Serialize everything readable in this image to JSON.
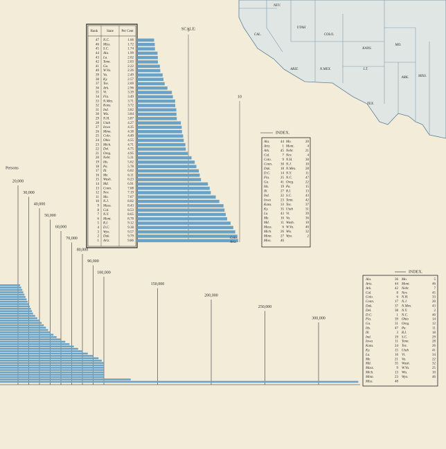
{
  "rank_table": {
    "headers": [
      "Rank",
      "State",
      "Per Cent"
    ],
    "rows": [
      [
        47,
        "N.C.",
        1.66
      ],
      [
        46,
        "Miss.",
        1.72
      ],
      [
        45,
        "S.C.",
        1.74
      ],
      [
        44,
        "Ala.",
        1.99
      ],
      [
        43,
        "La.",
        2.02
      ],
      [
        42,
        "Tenn.",
        2.03
      ],
      [
        41,
        "Ga.",
        2.22
      ],
      [
        40,
        "W.Va.",
        2.26
      ],
      [
        39,
        "Va.",
        2.49
      ],
      [
        38,
        "Ky.",
        2.57
      ],
      [
        37,
        "Tex.",
        2.69
      ],
      [
        36,
        "Ark.",
        2.96
      ],
      [
        35,
        "Vt.",
        3.39
      ],
      [
        34,
        "Fla.",
        3.49
      ],
      [
        33,
        "N.Mex.",
        3.71
      ],
      [
        32,
        "Kans.",
        3.72
      ],
      [
        31,
        "Ind.",
        3.82
      ],
      [
        30,
        "Wis.",
        3.84
      ],
      [
        29,
        "N.H.",
        3.87
      ],
      [
        28,
        "Utah",
        4.27
      ],
      [
        27,
        "Iowa",
        4.35
      ],
      [
        26,
        "Minn.",
        4.38
      ],
      [
        25,
        "Colo.",
        4.49
      ],
      [
        24,
        "Ohio",
        4.55
      ],
      [
        23,
        "Mich.",
        4.71
      ],
      [
        22,
        "Del.",
        4.75
      ],
      [
        21,
        "Oreg.",
        4.95
      ],
      [
        20,
        "Nebr.",
        5.31
      ],
      [
        19,
        "Ids.",
        5.62
      ],
      [
        18,
        "Pa.",
        5.78
      ],
      [
        17,
        "Ill.",
        6.02
      ],
      [
        16,
        "Me.",
        6.11
      ],
      [
        15,
        "Wash.",
        6.23
      ],
      [
        14,
        "Md.",
        6.91
      ],
      [
        13,
        "Conn.",
        7.08
      ],
      [
        12,
        "Nev.",
        7.19
      ],
      [
        11,
        "Mo.",
        7.67
      ],
      [
        10,
        "N.J.",
        8.02
      ],
      [
        9,
        "Mass.",
        8.43
      ],
      [
        8,
        "Cal.",
        8.53
      ],
      [
        7,
        "N.Y.",
        8.65
      ],
      [
        6,
        "Mont.",
        8.78
      ],
      [
        5,
        "R.I.",
        9.12
      ],
      [
        4,
        "D.C.",
        9.38
      ],
      [
        3,
        "Wyo.",
        9.57
      ],
      [
        2,
        "Dak.",
        9.79
      ],
      [
        1,
        "Ariz.",
        9.86
      ]
    ]
  },
  "rank_chart": {
    "type": "bar",
    "scale_label": "SCALE:",
    "xlim": [
      0,
      10
    ],
    "xticks": [
      5,
      10
    ],
    "color": "#6aa2c6",
    "end_labels": [
      "Colo.",
      "Ariz."
    ]
  },
  "city_chart": {
    "type": "bar",
    "unit_label": "Persons",
    "xlim": [
      0,
      340000
    ],
    "xticks": [
      {
        "value": 20000,
        "label": "20,000"
      },
      {
        "value": 30000,
        "label": "30,000"
      },
      {
        "value": 40000,
        "label": "40,000"
      },
      {
        "value": 50000,
        "label": "50,000"
      },
      {
        "value": 60000,
        "label": "60,000"
      },
      {
        "value": 70000,
        "label": "70,000"
      },
      {
        "value": 80000,
        "label": "80,000"
      },
      {
        "value": 90000,
        "label": "90,000"
      },
      {
        "value": 100000,
        "label": "100,000"
      },
      {
        "value": 150000,
        "label": "150,000"
      },
      {
        "value": 200000,
        "label": "200,000"
      },
      {
        "value": 250000,
        "label": "250,000"
      },
      {
        "value": 300000,
        "label": "300,000"
      }
    ],
    "color": "#6aa2c6",
    "values": [
      22000,
      23000,
      24000,
      25000,
      26000,
      27000,
      28000,
      29000,
      30000,
      31000,
      32000,
      33000,
      34000,
      36000,
      38000,
      40000,
      42000,
      44000,
      46000,
      48000,
      50000,
      53000,
      56000,
      60000,
      64000,
      68000,
      72000,
      76000,
      80000,
      85000,
      90000,
      95000,
      98000,
      100000,
      100000,
      100000,
      100000,
      100000,
      100000,
      100000,
      125000,
      337000
    ]
  },
  "index_1": {
    "title": "INDEX.",
    "rows": [
      [
        "Ala.",
        "44",
        "Mo.",
        "20"
      ],
      [
        "Ariz.",
        "1",
        "Mont.",
        "4"
      ],
      [
        "Ark.",
        "45",
        "Nebr.",
        "21"
      ],
      [
        "Cal.",
        "7",
        "Nev.",
        "4"
      ],
      [
        "Colo.",
        "9",
        "N.H.",
        "30"
      ],
      [
        "Conn.",
        "30",
        "N.J.",
        "10"
      ],
      [
        "Dak.",
        "18",
        "N.Mex.",
        "28"
      ],
      [
        "D.C.",
        "14",
        "N.Y.",
        "11"
      ],
      [
        "Fla.",
        "25",
        "N.C.",
        "47"
      ],
      [
        "Ga.",
        "41",
        "Oreg.",
        "22"
      ],
      [
        "Ids.",
        "19",
        "Pa.",
        "15"
      ],
      [
        "Ill.",
        "27",
        "R.I.",
        "13"
      ],
      [
        "Ind.",
        "22",
        "S.C.",
        "43"
      ],
      [
        "Iowa",
        "23",
        "Tenn.",
        "42"
      ],
      [
        "Kans.",
        "33",
        "Tex.",
        "37"
      ],
      [
        "Ky.",
        "35",
        "Utah",
        "31"
      ],
      [
        "La.",
        "43",
        "Vt.",
        "39"
      ],
      [
        "Me.",
        "16",
        "Va.",
        "36"
      ],
      [
        "Md.",
        "11",
        "Wash.",
        "10"
      ],
      [
        "Mass.",
        "6",
        "W.Va.",
        "40"
      ],
      [
        "Mich.",
        "26",
        "Wis.",
        "32"
      ],
      [
        "Minn.",
        "27",
        "Wyo.",
        "2"
      ],
      [
        "Miss.",
        "46"
      ]
    ]
  },
  "index_2": {
    "title": "INDEX.",
    "rows": [
      [
        "Ala.",
        "36",
        "Mo.",
        "5"
      ],
      [
        "Ariz.",
        "44",
        "Mont.",
        "46"
      ],
      [
        "Ark.",
        "42",
        "Nebr.",
        "7"
      ],
      [
        "Cal.",
        "8",
        "Nev.",
        "45"
      ],
      [
        "Colo.",
        "6",
        "N.H.",
        "33"
      ],
      [
        "Conn.",
        "17",
        "N.J.",
        "20"
      ],
      [
        "Dak.",
        "37",
        "N.Mex.",
        "43"
      ],
      [
        "Del.",
        "38",
        "N.Y.",
        "2"
      ],
      [
        "D.C.",
        "1",
        "N.C.",
        "40"
      ],
      [
        "Fla.",
        "39",
        "Ohio",
        "14"
      ],
      [
        "Ga.",
        "31",
        "Oreg.",
        "12"
      ],
      [
        "Ids.",
        "47",
        "Pa.",
        "11"
      ],
      [
        "Ill.",
        "3",
        "R.I.",
        "18"
      ],
      [
        "Ind.",
        "19",
        "S.C.",
        "29"
      ],
      [
        "Iowa",
        "11",
        "Tenn.",
        "28"
      ],
      [
        "Kans.",
        "24",
        "Tex.",
        "26"
      ],
      [
        "Ky.",
        "15",
        "Utah",
        "41"
      ],
      [
        "La.",
        "16",
        "Vt.",
        "34"
      ],
      [
        "Me.",
        "21",
        "Va.",
        "22"
      ],
      [
        "Md.",
        "35",
        "Wash.",
        "32"
      ],
      [
        "Mass.",
        "9",
        "W.Va.",
        "25"
      ],
      [
        "Mich.",
        "13",
        "Wis.",
        "10"
      ],
      [
        "Minn.",
        "23",
        "Wyo.",
        "46"
      ],
      [
        "Miss.",
        "48"
      ]
    ]
  },
  "map": {
    "labels": [
      "NEV.",
      "UTAH",
      "COLO.",
      "KANS.",
      "MO.",
      "CAL.",
      "ARIZ.",
      "N.MEX.",
      "I.T.",
      "ARK.",
      "MISS.",
      "TEX."
    ]
  }
}
